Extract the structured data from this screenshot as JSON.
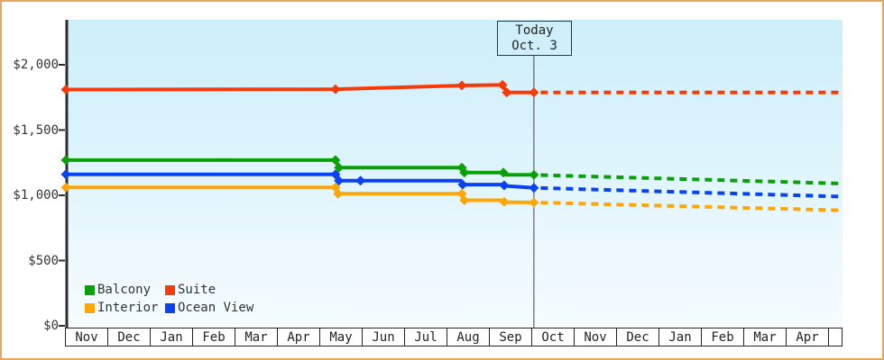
{
  "frame": {
    "border_color": "#e8a55f"
  },
  "today": {
    "line1": "Today",
    "line2": "Oct. 3",
    "month_position": 11.04
  },
  "legend": {
    "items": [
      {
        "label": "Balcony",
        "color": "#0aa00a"
      },
      {
        "label": "Suite",
        "color": "#f63a08"
      },
      {
        "label": "Interior",
        "color": "#ffa506"
      },
      {
        "label": "Ocean View",
        "color": "#0a41f0"
      }
    ]
  },
  "chart_data": {
    "type": "line",
    "title": "",
    "description": "Cruise cabin price history by category; solid = recorded prices Nov through today (Oct 3), dashed = projection",
    "x_axis": {
      "months": [
        "Nov",
        "Dec",
        "Jan",
        "Feb",
        "Mar",
        "Apr",
        "May",
        "Jun",
        "Jul",
        "Aug",
        "Sep",
        "Oct",
        "Nov",
        "Dec",
        "Jan",
        "Feb",
        "Mar",
        "Apr"
      ],
      "unit_note": "x values below are months from left edge (Nov 1 = 0); today line at 11.04 = Oct 3"
    },
    "y_axis": {
      "ticks": [
        {
          "label": "$0",
          "value": 0
        },
        {
          "label": "$500",
          "value": 500
        },
        {
          "label": "$1,000",
          "value": 1000
        },
        {
          "label": "$1,500",
          "value": 1500
        },
        {
          "label": "$2,000",
          "value": 2000
        }
      ],
      "range": [
        0,
        2345
      ],
      "grid": "off",
      "currency": "USD"
    },
    "series": [
      {
        "name": "Suite",
        "color": "#f63a08",
        "solid": [
          [
            0,
            1810
          ],
          [
            6.36,
            1813
          ],
          [
            9.34,
            1841
          ],
          [
            10.3,
            1846
          ],
          [
            10.4,
            1788
          ],
          [
            11.04,
            1788
          ]
        ],
        "markers": [
          [
            0,
            1810
          ],
          [
            6.36,
            1813
          ],
          [
            9.34,
            1841
          ],
          [
            10.3,
            1846
          ],
          [
            10.4,
            1788
          ],
          [
            11.04,
            1788
          ]
        ],
        "dashed": [
          [
            11.2,
            1788
          ],
          [
            18.3,
            1788
          ]
        ]
      },
      {
        "name": "Balcony",
        "color": "#0aa00a",
        "solid": [
          [
            0,
            1270
          ],
          [
            6.36,
            1270
          ],
          [
            6.44,
            1212
          ],
          [
            9.32,
            1212
          ],
          [
            9.4,
            1174
          ],
          [
            10.3,
            1174
          ],
          [
            10.38,
            1157
          ],
          [
            11.04,
            1157
          ]
        ],
        "markers": [
          [
            0,
            1270
          ],
          [
            6.36,
            1270
          ],
          [
            6.44,
            1212
          ],
          [
            9.34,
            1212
          ],
          [
            9.4,
            1174
          ],
          [
            10.32,
            1174
          ],
          [
            11.04,
            1157
          ]
        ],
        "dashed": [
          [
            11.2,
            1155
          ],
          [
            18.3,
            1090
          ]
        ]
      },
      {
        "name": "Ocean View",
        "color": "#0a41f0",
        "solid": [
          [
            0,
            1160
          ],
          [
            6.36,
            1160
          ],
          [
            6.44,
            1112
          ],
          [
            9.32,
            1112
          ],
          [
            9.4,
            1082
          ],
          [
            10.3,
            1082
          ],
          [
            10.38,
            1072
          ],
          [
            11.04,
            1057
          ]
        ],
        "markers": [
          [
            0,
            1160
          ],
          [
            6.36,
            1160
          ],
          [
            6.44,
            1112
          ],
          [
            6.95,
            1112
          ],
          [
            9.36,
            1082
          ],
          [
            10.34,
            1076
          ],
          [
            11.04,
            1057
          ]
        ],
        "dashed": [
          [
            11.2,
            1056
          ],
          [
            18.3,
            990
          ]
        ]
      },
      {
        "name": "Interior",
        "color": "#ffa506",
        "solid": [
          [
            0,
            1060
          ],
          [
            6.36,
            1060
          ],
          [
            6.42,
            1012
          ],
          [
            9.32,
            1012
          ],
          [
            9.4,
            962
          ],
          [
            10.3,
            962
          ],
          [
            10.38,
            947
          ],
          [
            11.04,
            945
          ]
        ],
        "markers": [
          [
            0,
            1060
          ],
          [
            6.36,
            1060
          ],
          [
            6.42,
            1012
          ],
          [
            9.34,
            1012
          ],
          [
            9.4,
            962
          ],
          [
            10.34,
            950
          ],
          [
            11.04,
            945
          ]
        ],
        "dashed": [
          [
            11.2,
            944
          ],
          [
            18.3,
            885
          ]
        ]
      }
    ],
    "annotations": [
      {
        "text": "Today Oct. 3",
        "x": 11.04
      }
    ],
    "legend_position": "bottom-left inside plot"
  }
}
